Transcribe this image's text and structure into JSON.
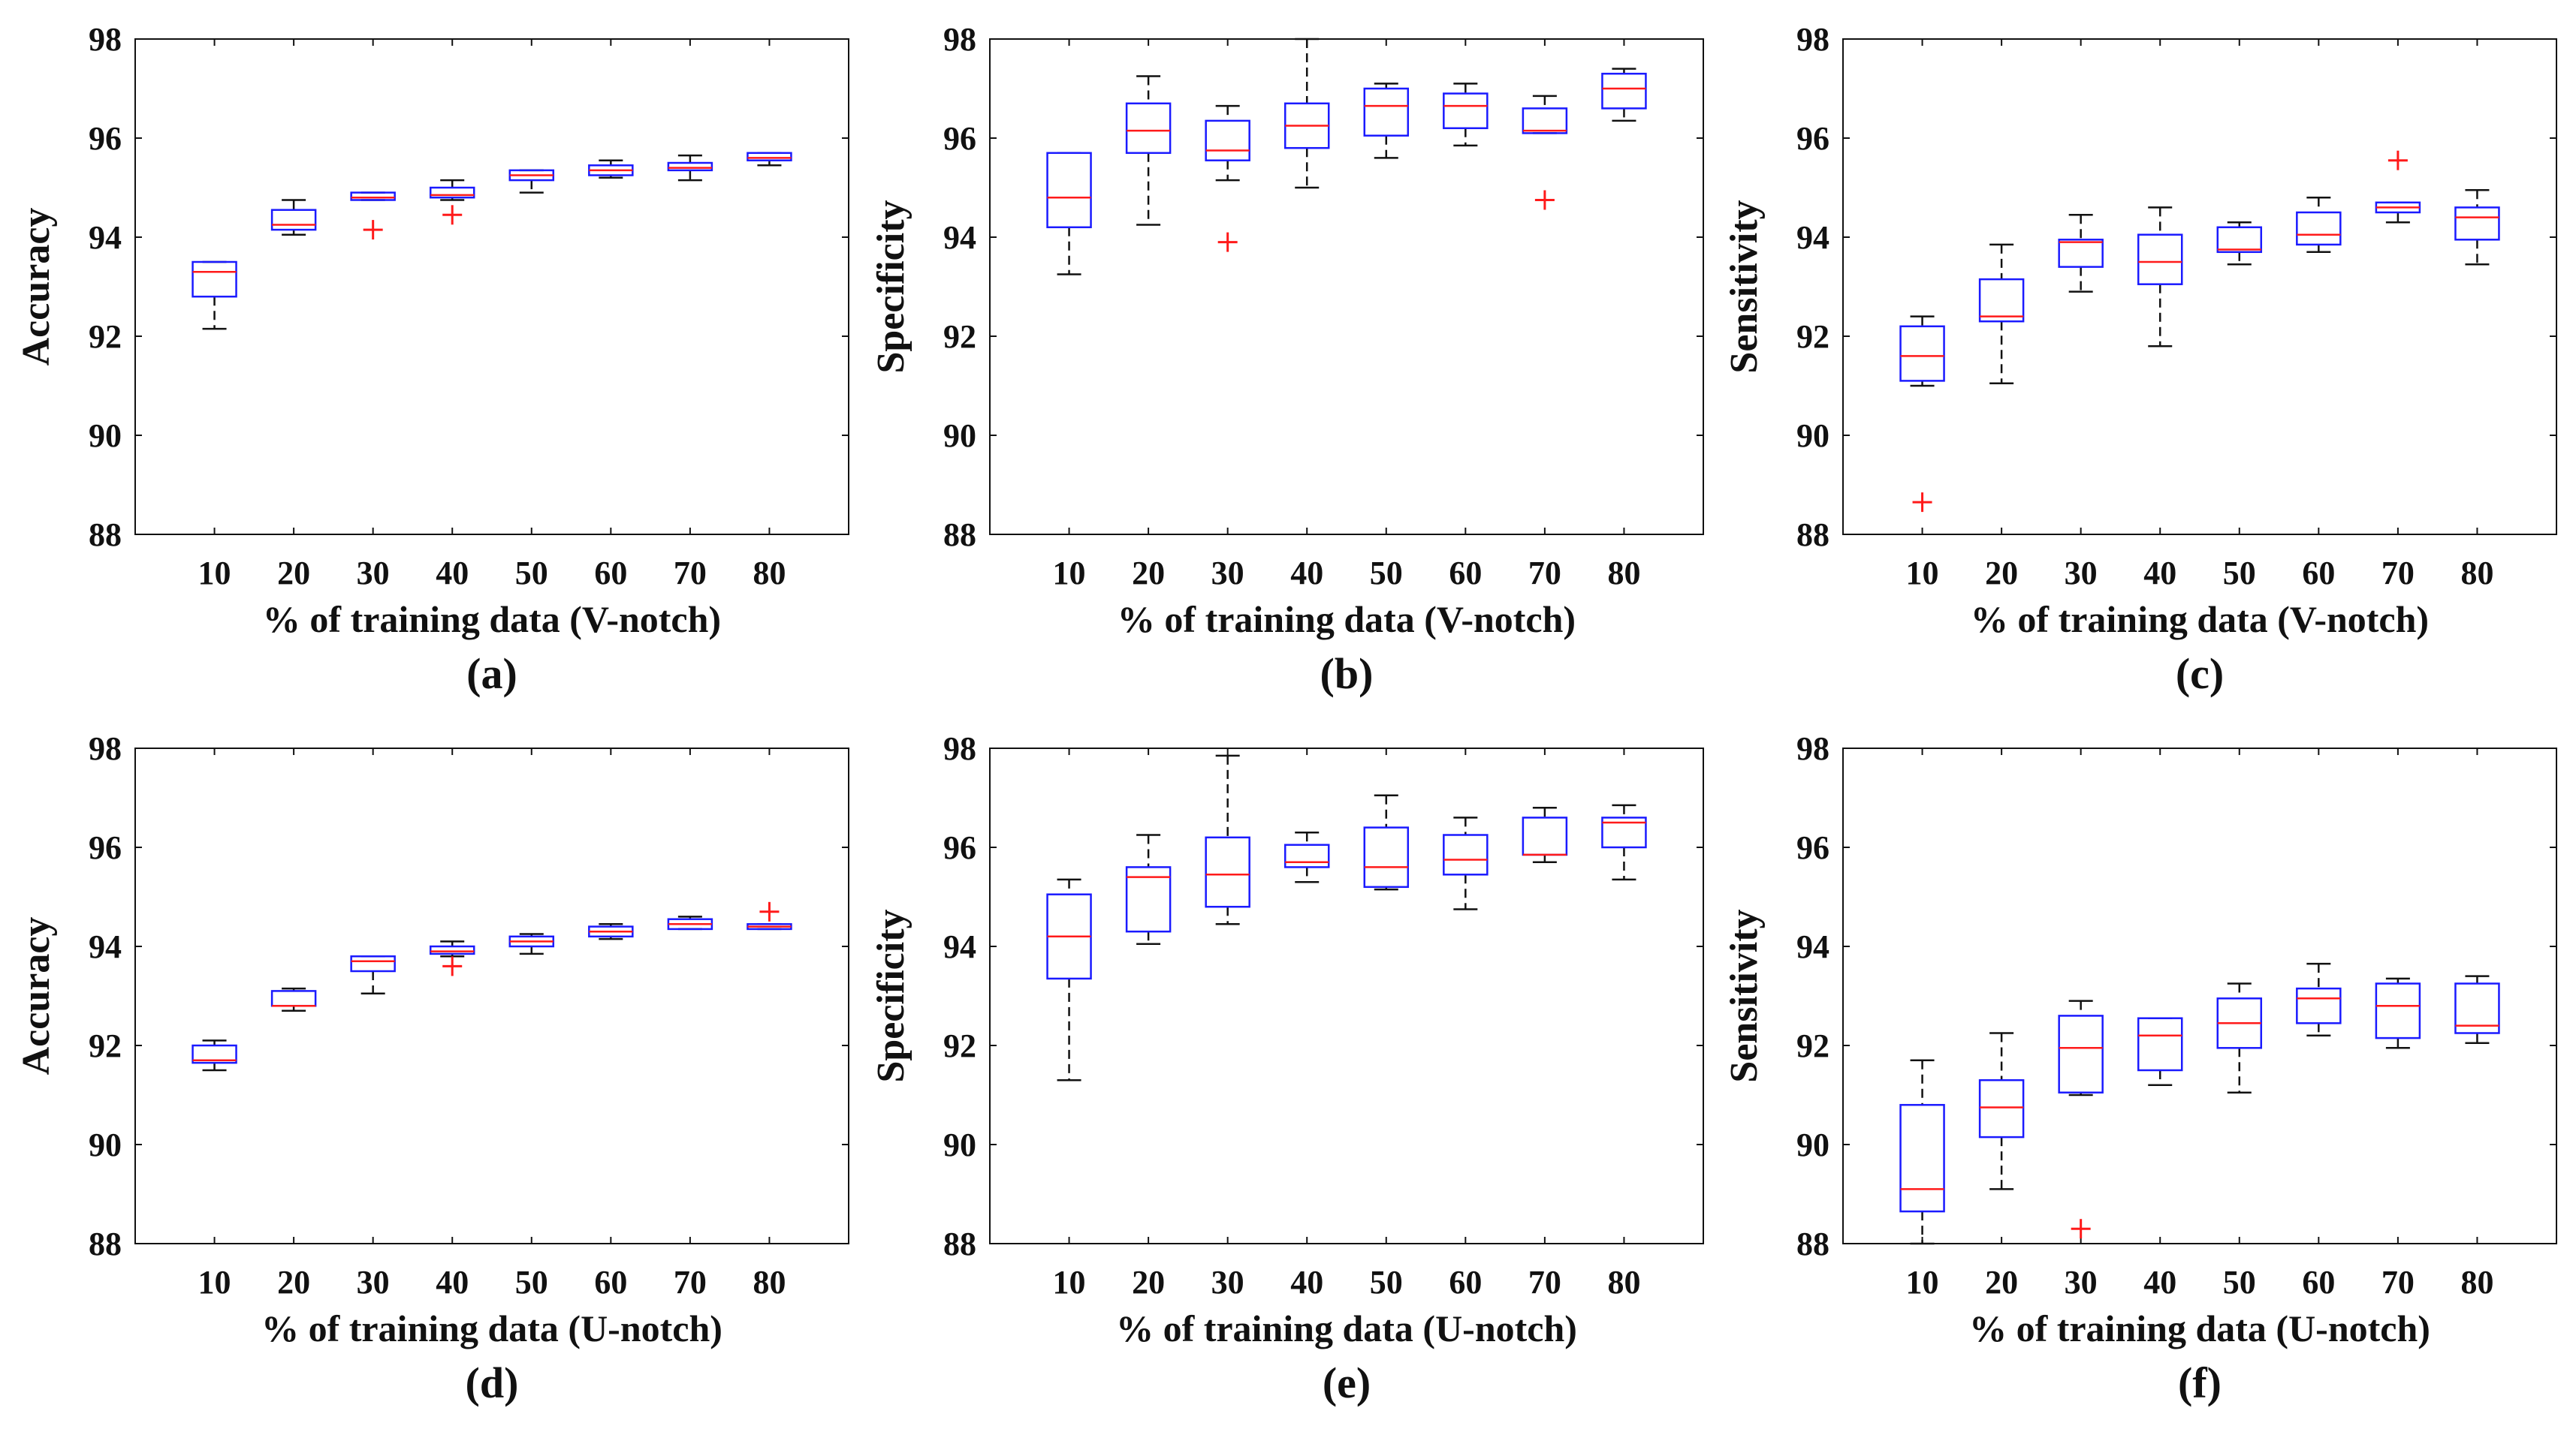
{
  "colors": {
    "box": "#1a1aff",
    "median": "#ff1a1a",
    "whisker": "#111111",
    "outlier": "#ff1a1a",
    "axis": "#111111"
  },
  "chart_data": [
    {
      "type": "boxplot",
      "panel": "(a)",
      "xlabel": "% of training data (V-notch)",
      "ylabel": "Accuracy",
      "categories": [
        "10",
        "20",
        "30",
        "40",
        "50",
        "60",
        "70",
        "80"
      ],
      "ylim": [
        88,
        98
      ],
      "yticks": [
        "88",
        "90",
        "92",
        "94",
        "96",
        "98"
      ],
      "boxes": [
        {
          "low": 92.15,
          "q1": 92.8,
          "median": 93.3,
          "q3": 93.5,
          "high": 93.5,
          "outliers": []
        },
        {
          "low": 94.05,
          "q1": 94.15,
          "median": 94.25,
          "q3": 94.55,
          "high": 94.75,
          "outliers": []
        },
        {
          "low": 94.75,
          "q1": 94.75,
          "median": 94.8,
          "q3": 94.9,
          "high": 94.9,
          "outliers": [
            94.15
          ]
        },
        {
          "low": 94.75,
          "q1": 94.8,
          "median": 94.85,
          "q3": 95.0,
          "high": 95.15,
          "outliers": [
            94.45
          ]
        },
        {
          "low": 94.9,
          "q1": 95.15,
          "median": 95.25,
          "q3": 95.35,
          "high": 95.35,
          "outliers": []
        },
        {
          "low": 95.2,
          "q1": 95.25,
          "median": 95.35,
          "q3": 95.45,
          "high": 95.55,
          "outliers": []
        },
        {
          "low": 95.15,
          "q1": 95.35,
          "median": 95.4,
          "q3": 95.5,
          "high": 95.65,
          "outliers": []
        },
        {
          "low": 95.45,
          "q1": 95.55,
          "median": 95.6,
          "q3": 95.7,
          "high": 95.7,
          "outliers": []
        }
      ]
    },
    {
      "type": "boxplot",
      "panel": "(b)",
      "xlabel": "% of training data (V-notch)",
      "ylabel": "Specificity",
      "categories": [
        "10",
        "20",
        "30",
        "40",
        "50",
        "60",
        "70",
        "80"
      ],
      "ylim": [
        88,
        98
      ],
      "yticks": [
        "88",
        "90",
        "92",
        "94",
        "96",
        "98"
      ],
      "boxes": [
        {
          "low": 93.25,
          "q1": 94.2,
          "median": 94.8,
          "q3": 95.7,
          "high": 95.7,
          "outliers": []
        },
        {
          "low": 94.25,
          "q1": 95.7,
          "median": 96.15,
          "q3": 96.7,
          "high": 97.25,
          "outliers": []
        },
        {
          "low": 95.15,
          "q1": 95.55,
          "median": 95.75,
          "q3": 96.35,
          "high": 96.65,
          "outliers": [
            93.9
          ]
        },
        {
          "low": 95.0,
          "q1": 95.8,
          "median": 96.25,
          "q3": 96.7,
          "high": 98.0,
          "outliers": []
        },
        {
          "low": 95.6,
          "q1": 96.05,
          "median": 96.65,
          "q3": 97.0,
          "high": 97.1,
          "outliers": []
        },
        {
          "low": 95.85,
          "q1": 96.2,
          "median": 96.65,
          "q3": 96.9,
          "high": 97.1,
          "outliers": []
        },
        {
          "low": 96.1,
          "q1": 96.1,
          "median": 96.15,
          "q3": 96.6,
          "high": 96.85,
          "outliers": [
            94.75
          ]
        },
        {
          "low": 96.35,
          "q1": 96.6,
          "median": 97.0,
          "q3": 97.3,
          "high": 97.4,
          "outliers": []
        }
      ]
    },
    {
      "type": "boxplot",
      "panel": "(c)",
      "xlabel": "% of training data (V-notch)",
      "ylabel": "Sensitivity",
      "categories": [
        "10",
        "20",
        "30",
        "40",
        "50",
        "60",
        "70",
        "80"
      ],
      "ylim": [
        88,
        98
      ],
      "yticks": [
        "88",
        "90",
        "92",
        "94",
        "96",
        "98"
      ],
      "boxes": [
        {
          "low": 91.0,
          "q1": 91.1,
          "median": 91.6,
          "q3": 92.2,
          "high": 92.4,
          "outliers": [
            88.65
          ]
        },
        {
          "low": 91.05,
          "q1": 92.3,
          "median": 92.4,
          "q3": 93.15,
          "high": 93.85,
          "outliers": []
        },
        {
          "low": 92.9,
          "q1": 93.4,
          "median": 93.9,
          "q3": 93.95,
          "high": 94.45,
          "outliers": []
        },
        {
          "low": 91.8,
          "q1": 93.05,
          "median": 93.5,
          "q3": 94.05,
          "high": 94.6,
          "outliers": []
        },
        {
          "low": 93.45,
          "q1": 93.7,
          "median": 93.75,
          "q3": 94.2,
          "high": 94.3,
          "outliers": []
        },
        {
          "low": 93.7,
          "q1": 93.85,
          "median": 94.05,
          "q3": 94.5,
          "high": 94.8,
          "outliers": []
        },
        {
          "low": 94.3,
          "q1": 94.5,
          "median": 94.6,
          "q3": 94.7,
          "high": 94.7,
          "outliers": [
            95.55
          ]
        },
        {
          "low": 93.45,
          "q1": 93.95,
          "median": 94.4,
          "q3": 94.6,
          "high": 94.95,
          "outliers": []
        }
      ]
    },
    {
      "type": "boxplot",
      "panel": "(d)",
      "xlabel": "% of training data (U-notch)",
      "ylabel": "Accuracy",
      "categories": [
        "10",
        "20",
        "30",
        "40",
        "50",
        "60",
        "70",
        "80"
      ],
      "ylim": [
        88,
        98
      ],
      "yticks": [
        "88",
        "90",
        "92",
        "94",
        "96",
        "98"
      ],
      "boxes": [
        {
          "low": 91.5,
          "q1": 91.65,
          "median": 91.7,
          "q3": 92.0,
          "high": 92.1,
          "outliers": []
        },
        {
          "low": 92.7,
          "q1": 92.8,
          "median": 92.8,
          "q3": 93.1,
          "high": 93.15,
          "outliers": []
        },
        {
          "low": 93.05,
          "q1": 93.5,
          "median": 93.7,
          "q3": 93.8,
          "high": 93.8,
          "outliers": []
        },
        {
          "low": 93.8,
          "q1": 93.85,
          "median": 93.9,
          "q3": 94.0,
          "high": 94.1,
          "outliers": [
            93.6
          ]
        },
        {
          "low": 93.85,
          "q1": 94.0,
          "median": 94.1,
          "q3": 94.2,
          "high": 94.25,
          "outliers": []
        },
        {
          "low": 94.15,
          "q1": 94.2,
          "median": 94.3,
          "q3": 94.4,
          "high": 94.45,
          "outliers": []
        },
        {
          "low": 94.35,
          "q1": 94.35,
          "median": 94.45,
          "q3": 94.55,
          "high": 94.6,
          "outliers": []
        },
        {
          "low": 94.35,
          "q1": 94.35,
          "median": 94.4,
          "q3": 94.45,
          "high": 94.45,
          "outliers": [
            94.7
          ]
        }
      ]
    },
    {
      "type": "boxplot",
      "panel": "(e)",
      "xlabel": "% of training data (U-notch)",
      "ylabel": "Specificity",
      "categories": [
        "10",
        "20",
        "30",
        "40",
        "50",
        "60",
        "70",
        "80"
      ],
      "ylim": [
        88,
        98
      ],
      "yticks": [
        "88",
        "90",
        "92",
        "94",
        "96",
        "98"
      ],
      "boxes": [
        {
          "low": 91.3,
          "q1": 93.35,
          "median": 94.2,
          "q3": 95.05,
          "high": 95.35,
          "outliers": []
        },
        {
          "low": 94.05,
          "q1": 94.3,
          "median": 95.4,
          "q3": 95.6,
          "high": 96.25,
          "outliers": []
        },
        {
          "low": 94.45,
          "q1": 94.8,
          "median": 95.45,
          "q3": 96.2,
          "high": 97.85,
          "outliers": []
        },
        {
          "low": 95.3,
          "q1": 95.6,
          "median": 95.7,
          "q3": 96.05,
          "high": 96.3,
          "outliers": []
        },
        {
          "low": 95.15,
          "q1": 95.2,
          "median": 95.6,
          "q3": 96.4,
          "high": 97.05,
          "outliers": []
        },
        {
          "low": 94.75,
          "q1": 95.45,
          "median": 95.75,
          "q3": 96.25,
          "high": 96.6,
          "outliers": []
        },
        {
          "low": 95.7,
          "q1": 95.85,
          "median": 95.85,
          "q3": 96.6,
          "high": 96.8,
          "outliers": []
        },
        {
          "low": 95.35,
          "q1": 96.0,
          "median": 96.5,
          "q3": 96.6,
          "high": 96.85,
          "outliers": []
        }
      ]
    },
    {
      "type": "boxplot",
      "panel": "(f)",
      "xlabel": "% of training data (U-notch)",
      "ylabel": "Sensitivity",
      "categories": [
        "10",
        "20",
        "30",
        "40",
        "50",
        "60",
        "70",
        "80"
      ],
      "ylim": [
        88,
        98
      ],
      "yticks": [
        "88",
        "90",
        "92",
        "94",
        "96",
        "98"
      ],
      "boxes": [
        {
          "low": 88.0,
          "q1": 88.65,
          "median": 89.1,
          "q3": 90.8,
          "high": 91.7,
          "outliers": []
        },
        {
          "low": 89.1,
          "q1": 90.15,
          "median": 90.75,
          "q3": 91.3,
          "high": 92.25,
          "outliers": []
        },
        {
          "low": 91.0,
          "q1": 91.05,
          "median": 91.95,
          "q3": 92.6,
          "high": 92.9,
          "outliers": [
            88.3
          ]
        },
        {
          "low": 91.2,
          "q1": 91.5,
          "median": 92.2,
          "q3": 92.55,
          "high": 92.55,
          "outliers": []
        },
        {
          "low": 91.05,
          "q1": 91.95,
          "median": 92.45,
          "q3": 92.95,
          "high": 93.25,
          "outliers": []
        },
        {
          "low": 92.2,
          "q1": 92.45,
          "median": 92.95,
          "q3": 93.15,
          "high": 93.65,
          "outliers": []
        },
        {
          "low": 91.95,
          "q1": 92.15,
          "median": 92.8,
          "q3": 93.25,
          "high": 93.35,
          "outliers": []
        },
        {
          "low": 92.05,
          "q1": 92.25,
          "median": 92.4,
          "q3": 93.25,
          "high": 93.4,
          "outliers": []
        }
      ]
    }
  ]
}
